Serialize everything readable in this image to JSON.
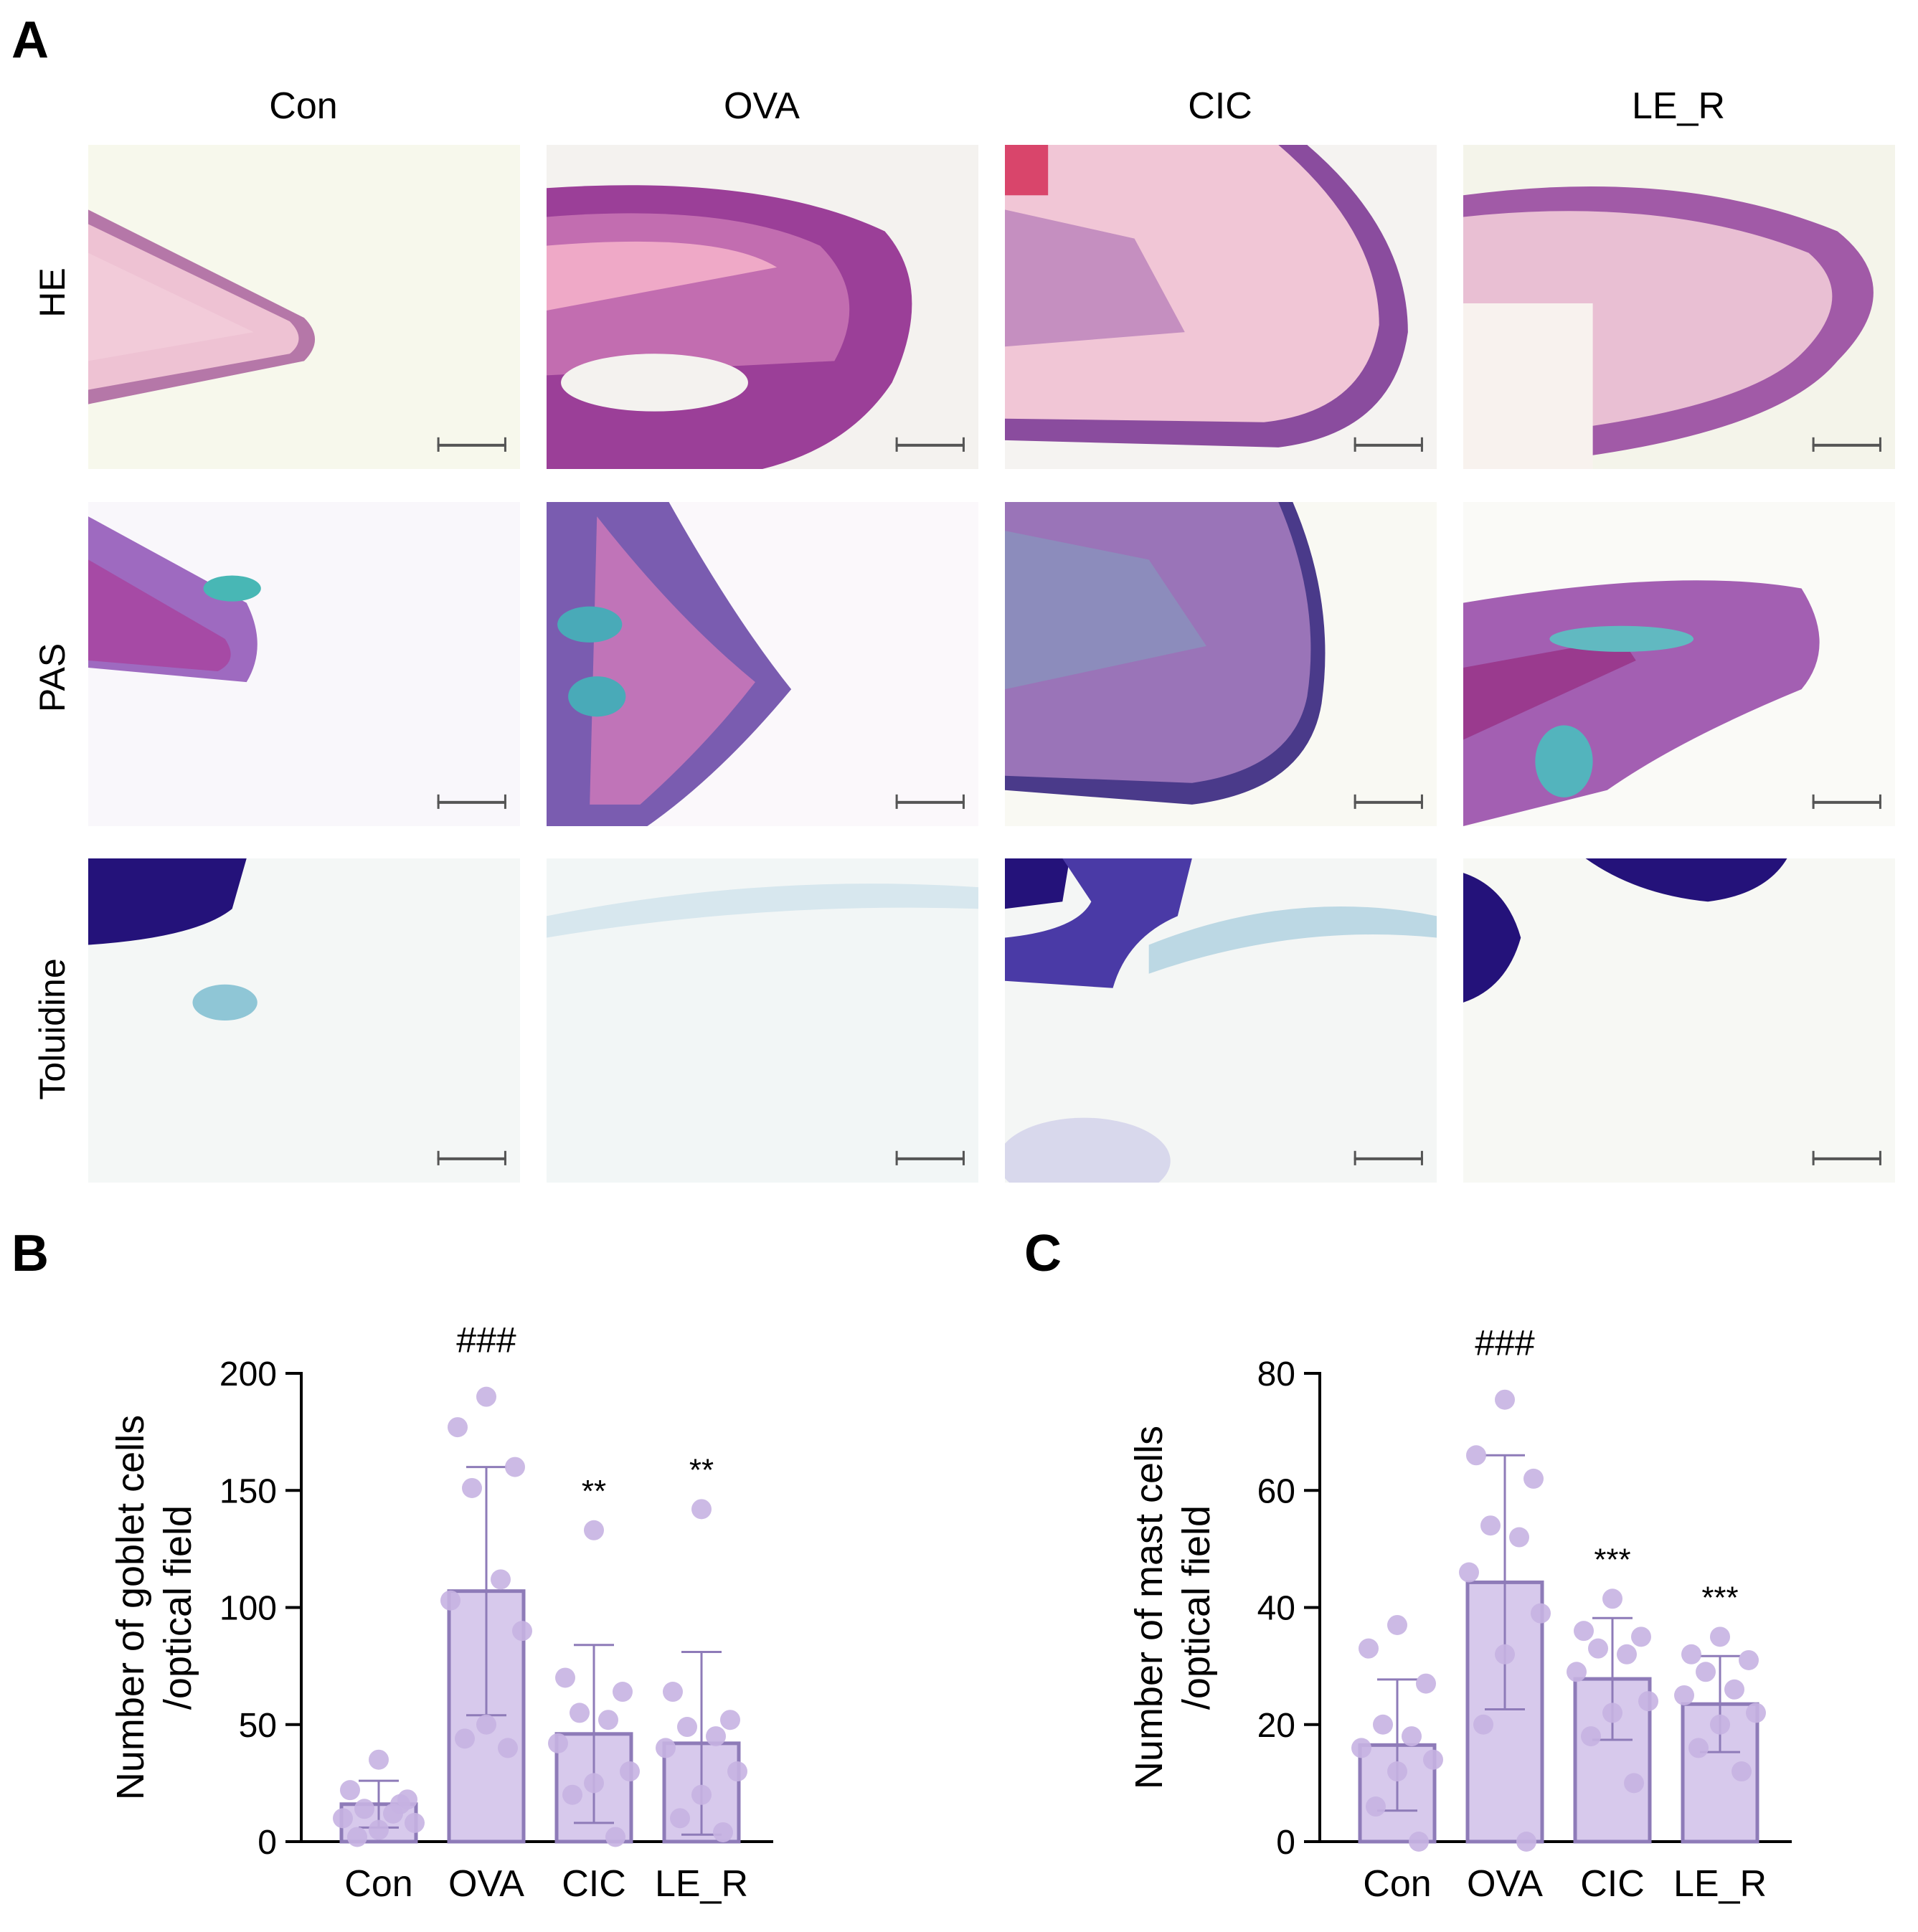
{
  "panelA": {
    "letter": "A",
    "columns": [
      "Con",
      "OVA",
      "CIC",
      "LE_R"
    ],
    "rows": [
      "HE",
      "PAS",
      "Toluidine"
    ]
  },
  "panelB": {
    "letter": "B",
    "chart_data": {
      "type": "bar",
      "categories": [
        "Con",
        "OVA",
        "CIC",
        "LE_R"
      ],
      "values": [
        16,
        107,
        46,
        42
      ],
      "sd": [
        10,
        53,
        38,
        39
      ],
      "points": [
        [
          35,
          22,
          18,
          14,
          12,
          10,
          8,
          5,
          2,
          16
        ],
        [
          190,
          177,
          160,
          151,
          112,
          103,
          90,
          50,
          44,
          40
        ],
        [
          133,
          70,
          64,
          55,
          52,
          42,
          30,
          25,
          20,
          2
        ],
        [
          142,
          64,
          52,
          49,
          45,
          40,
          30,
          20,
          10,
          4
        ]
      ],
      "significance": [
        "",
        "###",
        "**",
        "**"
      ],
      "ylabel_line1": "Number of goblet cells",
      "ylabel_line2": "/optical field",
      "ylim": [
        0,
        200
      ],
      "yticks": [
        0,
        50,
        100,
        150,
        200
      ],
      "bar_color": "#d7c9ec",
      "edge_color": "#8e7bb8",
      "point_color": "#c6b2e2"
    }
  },
  "panelC": {
    "letter": "C",
    "chart_data": {
      "type": "bar",
      "categories": [
        "Con",
        "OVA",
        "CIC",
        "LE_R"
      ],
      "values": [
        16.5,
        44.3,
        27.8,
        23.5
      ],
      "sd": [
        11.2,
        21.7,
        10.4,
        8.2
      ],
      "points": [
        [
          37,
          33,
          27,
          20,
          18,
          16,
          14,
          12,
          6,
          0
        ],
        [
          75.5,
          66,
          62,
          54,
          52,
          46,
          39,
          32,
          20,
          0
        ],
        [
          41.5,
          36,
          35,
          33,
          32,
          29,
          24,
          22,
          18,
          10
        ],
        [
          35,
          32,
          31,
          29,
          26,
          25,
          22,
          20,
          16,
          12
        ]
      ],
      "significance": [
        "",
        "###",
        "***",
        "***"
      ],
      "ylabel_line1": "Number of mast cells",
      "ylabel_line2": "/optical field",
      "ylim": [
        0,
        80
      ],
      "yticks": [
        0,
        20,
        40,
        60,
        80
      ],
      "bar_color": "#d7c9ec",
      "edge_color": "#8e7bb8",
      "point_color": "#c6b2e2"
    }
  }
}
